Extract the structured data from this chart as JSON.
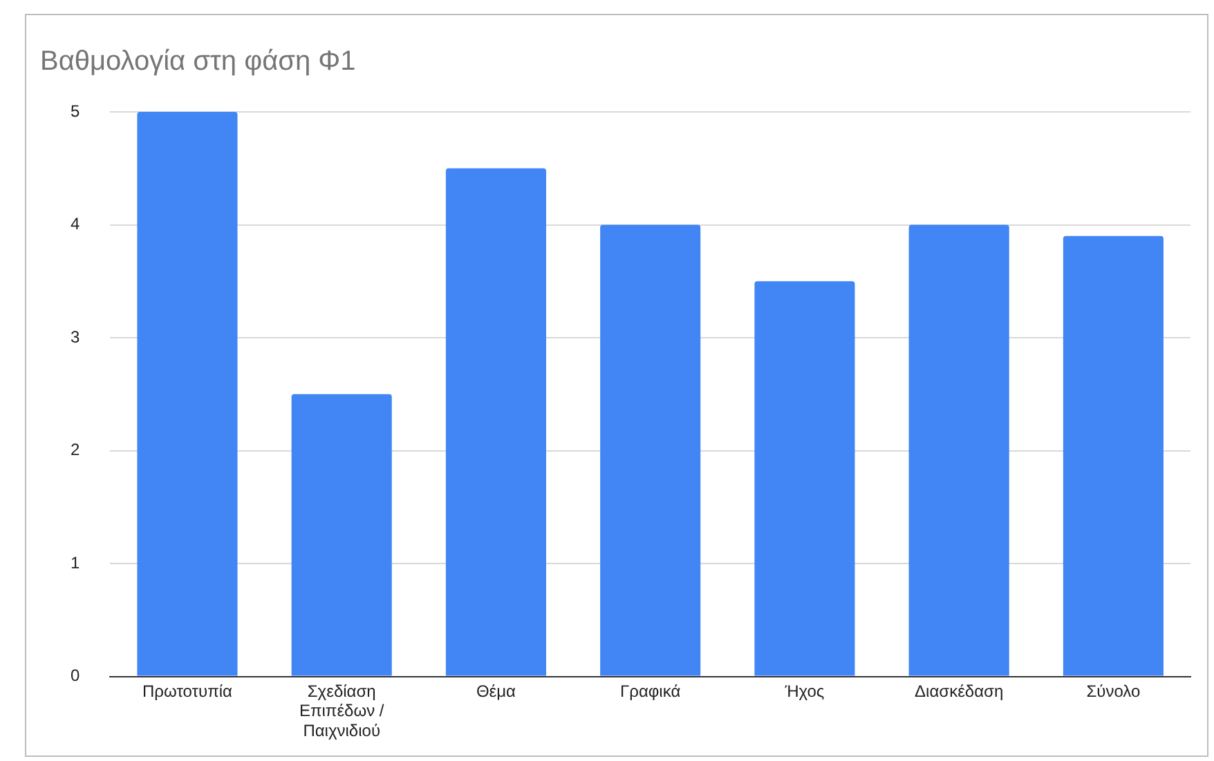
{
  "chart_data": {
    "type": "bar",
    "title": "Βαθμολογία στη φάση Φ1",
    "categories": [
      "Πρωτοτυπία",
      "Σχεδίαση Επιπέδων / Παιχνιδιού",
      "Θέμα",
      "Γραφικά",
      "Ήχος",
      "Διασκέδαση",
      "Σύνολο"
    ],
    "values": [
      5,
      2.5,
      4.5,
      4,
      3.5,
      4,
      3.9
    ],
    "color": "#4285f4",
    "ylim": [
      0,
      5
    ],
    "yticks": [
      0,
      1,
      2,
      3,
      4,
      5
    ],
    "grid": "y",
    "legend": false
  }
}
